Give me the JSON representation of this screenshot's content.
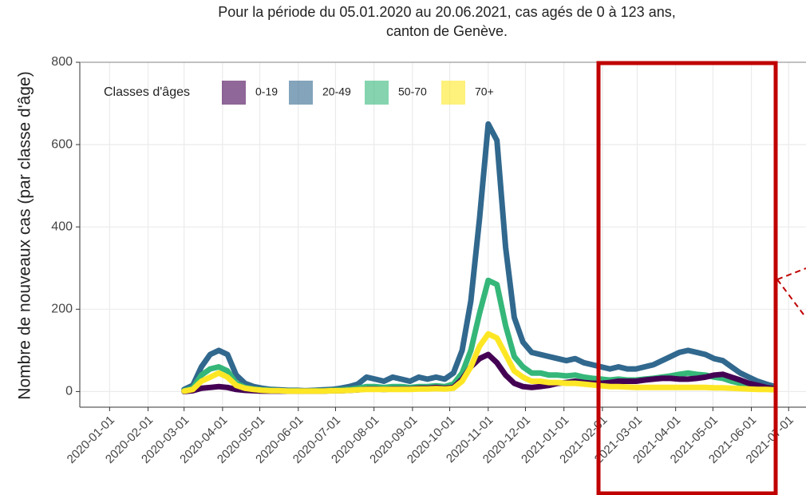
{
  "chart_data": {
    "type": "line",
    "title": [
      "Pour la période du 05.01.2020 au 20.06.2021, cas agés de 0 à 123 ans,",
      "canton de Genève."
    ],
    "y_label": "Nombre de nouveaux cas (par classe d'âge)",
    "legend_title": "Classes d'âges",
    "x": [
      "2020-03-01",
      "2020-03-08",
      "2020-03-15",
      "2020-03-22",
      "2020-03-29",
      "2020-04-05",
      "2020-04-12",
      "2020-04-19",
      "2020-04-26",
      "2020-05-03",
      "2020-05-10",
      "2020-05-17",
      "2020-05-24",
      "2020-05-31",
      "2020-06-07",
      "2020-06-14",
      "2020-06-21",
      "2020-06-28",
      "2020-07-05",
      "2020-07-12",
      "2020-07-19",
      "2020-07-26",
      "2020-08-02",
      "2020-08-09",
      "2020-08-16",
      "2020-08-23",
      "2020-08-30",
      "2020-09-06",
      "2020-09-13",
      "2020-09-20",
      "2020-09-27",
      "2020-10-04",
      "2020-10-11",
      "2020-10-18",
      "2020-10-25",
      "2020-11-01",
      "2020-11-08",
      "2020-11-15",
      "2020-11-22",
      "2020-11-29",
      "2020-12-06",
      "2020-12-13",
      "2020-12-20",
      "2020-12-27",
      "2021-01-03",
      "2021-01-10",
      "2021-01-17",
      "2021-01-24",
      "2021-01-31",
      "2021-02-07",
      "2021-02-14",
      "2021-02-21",
      "2021-02-28",
      "2021-03-07",
      "2021-03-14",
      "2021-03-21",
      "2021-03-28",
      "2021-04-04",
      "2021-04-11",
      "2021-04-18",
      "2021-04-25",
      "2021-05-02",
      "2021-05-09",
      "2021-05-16",
      "2021-05-23",
      "2021-05-30",
      "2021-06-06",
      "2021-06-13",
      "2021-06-20"
    ],
    "series": [
      {
        "name": "0-19",
        "color": "#440154",
        "values": [
          0,
          2,
          8,
          10,
          12,
          10,
          5,
          3,
          2,
          1,
          1,
          1,
          1,
          1,
          1,
          1,
          1,
          2,
          2,
          3,
          4,
          6,
          6,
          5,
          6,
          6,
          6,
          8,
          8,
          10,
          8,
          10,
          30,
          60,
          80,
          90,
          70,
          40,
          20,
          12,
          10,
          12,
          15,
          20,
          22,
          25,
          22,
          20,
          20,
          22,
          25,
          25,
          25,
          28,
          30,
          32,
          32,
          30,
          30,
          32,
          35,
          40,
          42,
          35,
          28,
          20,
          15,
          10,
          7
        ]
      },
      {
        "name": "20-49",
        "color": "#31688e",
        "values": [
          5,
          15,
          60,
          90,
          100,
          90,
          40,
          20,
          12,
          8,
          5,
          4,
          3,
          3,
          2,
          3,
          4,
          5,
          8,
          12,
          18,
          35,
          30,
          25,
          35,
          30,
          25,
          35,
          30,
          35,
          30,
          45,
          100,
          220,
          420,
          650,
          610,
          350,
          180,
          120,
          95,
          90,
          85,
          80,
          75,
          80,
          70,
          65,
          60,
          55,
          60,
          55,
          55,
          60,
          65,
          75,
          85,
          95,
          100,
          95,
          90,
          80,
          75,
          60,
          45,
          35,
          25,
          18,
          12
        ]
      },
      {
        "name": "50-70",
        "color": "#35b779",
        "values": [
          2,
          8,
          40,
          55,
          60,
          50,
          20,
          10,
          6,
          4,
          3,
          2,
          2,
          2,
          1,
          2,
          2,
          3,
          4,
          5,
          8,
          12,
          12,
          10,
          12,
          12,
          10,
          12,
          12,
          14,
          12,
          18,
          45,
          100,
          190,
          270,
          260,
          160,
          85,
          60,
          45,
          45,
          40,
          40,
          38,
          40,
          35,
          32,
          30,
          28,
          30,
          28,
          28,
          30,
          32,
          35,
          38,
          42,
          45,
          42,
          40,
          35,
          32,
          25,
          20,
          15,
          12,
          10,
          8
        ]
      },
      {
        "name": "70+",
        "color": "#fde725",
        "values": [
          1,
          5,
          25,
          35,
          45,
          35,
          15,
          8,
          5,
          3,
          2,
          2,
          1,
          1,
          1,
          1,
          1,
          2,
          2,
          3,
          4,
          5,
          5,
          5,
          5,
          5,
          5,
          6,
          6,
          7,
          6,
          8,
          25,
          60,
          110,
          140,
          130,
          90,
          50,
          35,
          25,
          25,
          22,
          22,
          20,
          20,
          18,
          16,
          14,
          12,
          12,
          11,
          10,
          10,
          10,
          10,
          10,
          10,
          10,
          10,
          10,
          9,
          9,
          8,
          7,
          6,
          5,
          5,
          4
        ]
      }
    ],
    "xlim": [
      "2019-12-08",
      "2021-07-15"
    ],
    "xticks": [
      "2020-01-01",
      "2020-02-01",
      "2020-03-01",
      "2020-04-01",
      "2020-05-01",
      "2020-06-01",
      "2020-07-01",
      "2020-08-01",
      "2020-09-01",
      "2020-10-01",
      "2020-11-01",
      "2020-12-01",
      "2021-01-01",
      "2021-02-01",
      "2021-03-01",
      "2021-04-01",
      "2021-05-01",
      "2021-06-01",
      "2021-07-01"
    ],
    "ylim": [
      -38,
      800
    ],
    "yticks": [
      0,
      200,
      400,
      600,
      800
    ],
    "grid": true
  }
}
